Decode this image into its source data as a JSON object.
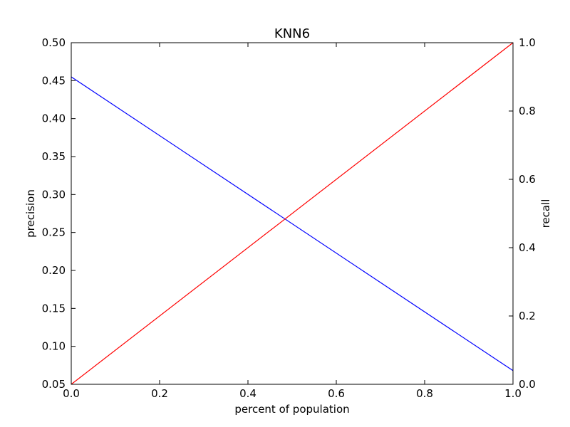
{
  "chart_data": {
    "type": "line",
    "title": "KNN6",
    "xlabel": "percent of population",
    "ylabel_left": "precision",
    "ylabel_right": "recall",
    "xlim": [
      0.0,
      1.0
    ],
    "ylim_left": [
      0.05,
      0.5
    ],
    "ylim_right": [
      0.0,
      1.0
    ],
    "x_ticks": [
      0.0,
      0.2,
      0.4,
      0.6,
      0.8,
      1.0
    ],
    "x_tick_labels": [
      "0.0",
      "0.2",
      "0.4",
      "0.6",
      "0.8",
      "1.0"
    ],
    "y_left_ticks": [
      0.05,
      0.1,
      0.15,
      0.2,
      0.25,
      0.3,
      0.35,
      0.4,
      0.45,
      0.5
    ],
    "y_left_tick_labels": [
      "0.05",
      "0.10",
      "0.15",
      "0.20",
      "0.25",
      "0.30",
      "0.35",
      "0.40",
      "0.45",
      "0.50"
    ],
    "y_right_ticks": [
      0.0,
      0.2,
      0.4,
      0.6,
      0.8,
      1.0
    ],
    "y_right_tick_labels": [
      "0.0",
      "0.2",
      "0.4",
      "0.6",
      "0.8",
      "1.0"
    ],
    "grid": false,
    "series": [
      {
        "axis": "left",
        "color": "#0000ff",
        "x": [
          0.0,
          1.0
        ],
        "values": [
          0.455,
          0.068
        ]
      },
      {
        "axis": "right",
        "color": "#ff0000",
        "x": [
          0.0,
          1.0
        ],
        "values": [
          0.0,
          1.0
        ]
      }
    ],
    "ylabel_left_color": "#0000ff",
    "ylabel_right_color": "#ff0000"
  }
}
